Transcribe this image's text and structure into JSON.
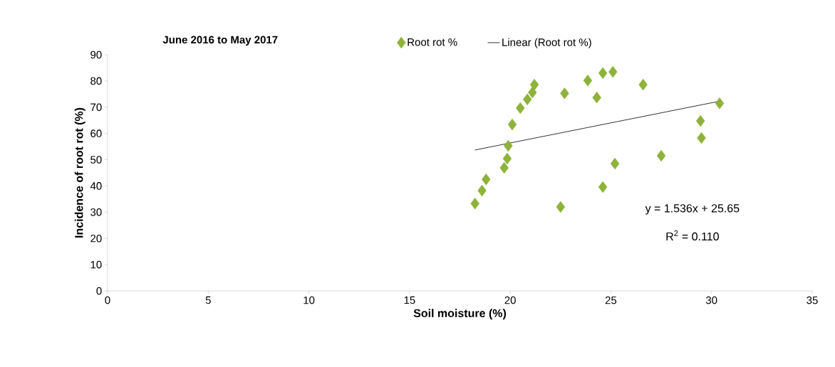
{
  "chart_data": {
    "type": "scatter",
    "title": "June 2016 to May 2017",
    "xlabel": "Soil moisture (%)",
    "ylabel": "Incidence of root rot (%)",
    "xlim": [
      0,
      35
    ],
    "xticks": [
      0,
      5,
      10,
      15,
      20,
      25,
      30,
      35
    ],
    "ylim": [
      0,
      90
    ],
    "yticks": [
      0,
      10,
      20,
      30,
      40,
      50,
      60,
      70,
      80,
      90
    ],
    "grid": false,
    "legend": "top",
    "series": [
      {
        "name": "Root rot %",
        "marker": "diamond",
        "color": "#8db33a",
        "x": [
          18.25,
          18.6,
          18.8,
          19.7,
          19.85,
          19.9,
          20.1,
          20.5,
          20.85,
          21.1,
          21.2,
          22.7,
          22.5,
          23.85,
          24.3,
          24.6,
          25.1,
          24.6,
          25.2,
          26.6,
          27.5,
          29.45,
          29.5,
          30.4
        ],
        "values": [
          33.3,
          38.2,
          42.5,
          46.9,
          50.4,
          55.3,
          63.4,
          69.7,
          73,
          75.6,
          78.6,
          75.3,
          32,
          80.2,
          73.7,
          83,
          83.5,
          39.6,
          48.5,
          78.6,
          51.5,
          64.8,
          58.3,
          71.5
        ]
      },
      {
        "name": "Linear (Root rot %)",
        "type": "line",
        "marker": "none",
        "color": "#000000",
        "x": [
          18.25,
          30.4
        ],
        "values": [
          53.7,
          72.3
        ]
      }
    ],
    "annotations": [
      "y = 1.536x + 25.65",
      "R$^{2}$ = 0.110"
    ]
  }
}
